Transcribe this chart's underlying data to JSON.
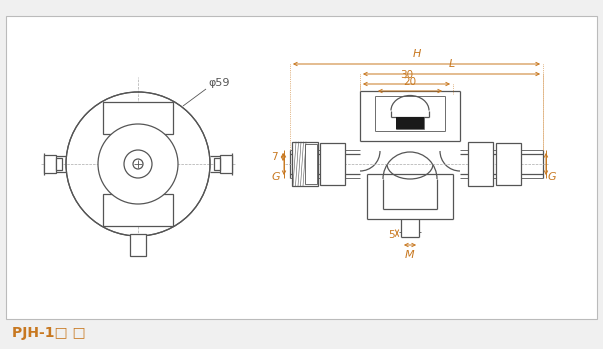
{
  "bg_color": "#f0f0f0",
  "inner_bg": "#ffffff",
  "line_color": "#555555",
  "dim_color": "#c87820",
  "border_color": "#bbbbbb",
  "title_label": "PJH-1□ □",
  "phi_label": "φ59",
  "dim_H": "H",
  "dim_L": "L",
  "dim_30": "30",
  "dim_20": "20",
  "dim_7": "7",
  "dim_G": "G",
  "dim_5": "5",
  "dim_M": "M"
}
